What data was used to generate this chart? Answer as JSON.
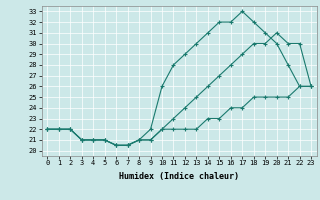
{
  "xlabel": "Humidex (Indice chaleur)",
  "bg_color": "#cce8e8",
  "line_color": "#1a7a6e",
  "xlim": [
    -0.5,
    23.5
  ],
  "ylim": [
    19.5,
    33.5
  ],
  "xticks": [
    0,
    1,
    2,
    3,
    4,
    5,
    6,
    7,
    8,
    9,
    10,
    11,
    12,
    13,
    14,
    15,
    16,
    17,
    18,
    19,
    20,
    21,
    22,
    23
  ],
  "yticks": [
    20,
    21,
    22,
    23,
    24,
    25,
    26,
    27,
    28,
    29,
    30,
    31,
    32,
    33
  ],
  "series1_x": [
    0,
    1,
    2,
    3,
    4,
    5,
    6,
    7,
    8,
    9,
    10,
    11,
    12,
    13,
    14,
    15,
    16,
    17,
    18,
    19,
    20,
    21,
    22,
    23
  ],
  "series1_y": [
    22,
    22,
    22,
    21,
    21,
    21,
    20.5,
    20.5,
    21,
    21,
    22,
    22,
    22,
    22,
    23,
    23,
    24,
    24,
    25,
    25,
    25,
    25,
    26,
    26
  ],
  "series2_x": [
    0,
    1,
    2,
    3,
    4,
    5,
    6,
    7,
    8,
    9,
    10,
    11,
    12,
    13,
    14,
    15,
    16,
    17,
    18,
    19,
    20,
    21,
    22,
    23
  ],
  "series2_y": [
    22,
    22,
    22,
    21,
    21,
    21,
    20.5,
    20.5,
    21,
    21,
    22,
    23,
    24,
    25,
    26,
    27,
    28,
    29,
    30,
    30,
    31,
    30,
    30,
    26
  ],
  "series3_x": [
    0,
    1,
    2,
    3,
    4,
    5,
    6,
    7,
    8,
    9,
    10,
    11,
    12,
    13,
    14,
    15,
    16,
    17,
    18,
    19,
    20,
    21,
    22,
    23
  ],
  "series3_y": [
    22,
    22,
    22,
    21,
    21,
    21,
    20.5,
    20.5,
    21,
    22,
    26,
    28,
    29,
    30,
    31,
    32,
    32,
    33,
    32,
    31,
    30,
    28,
    26,
    26
  ]
}
